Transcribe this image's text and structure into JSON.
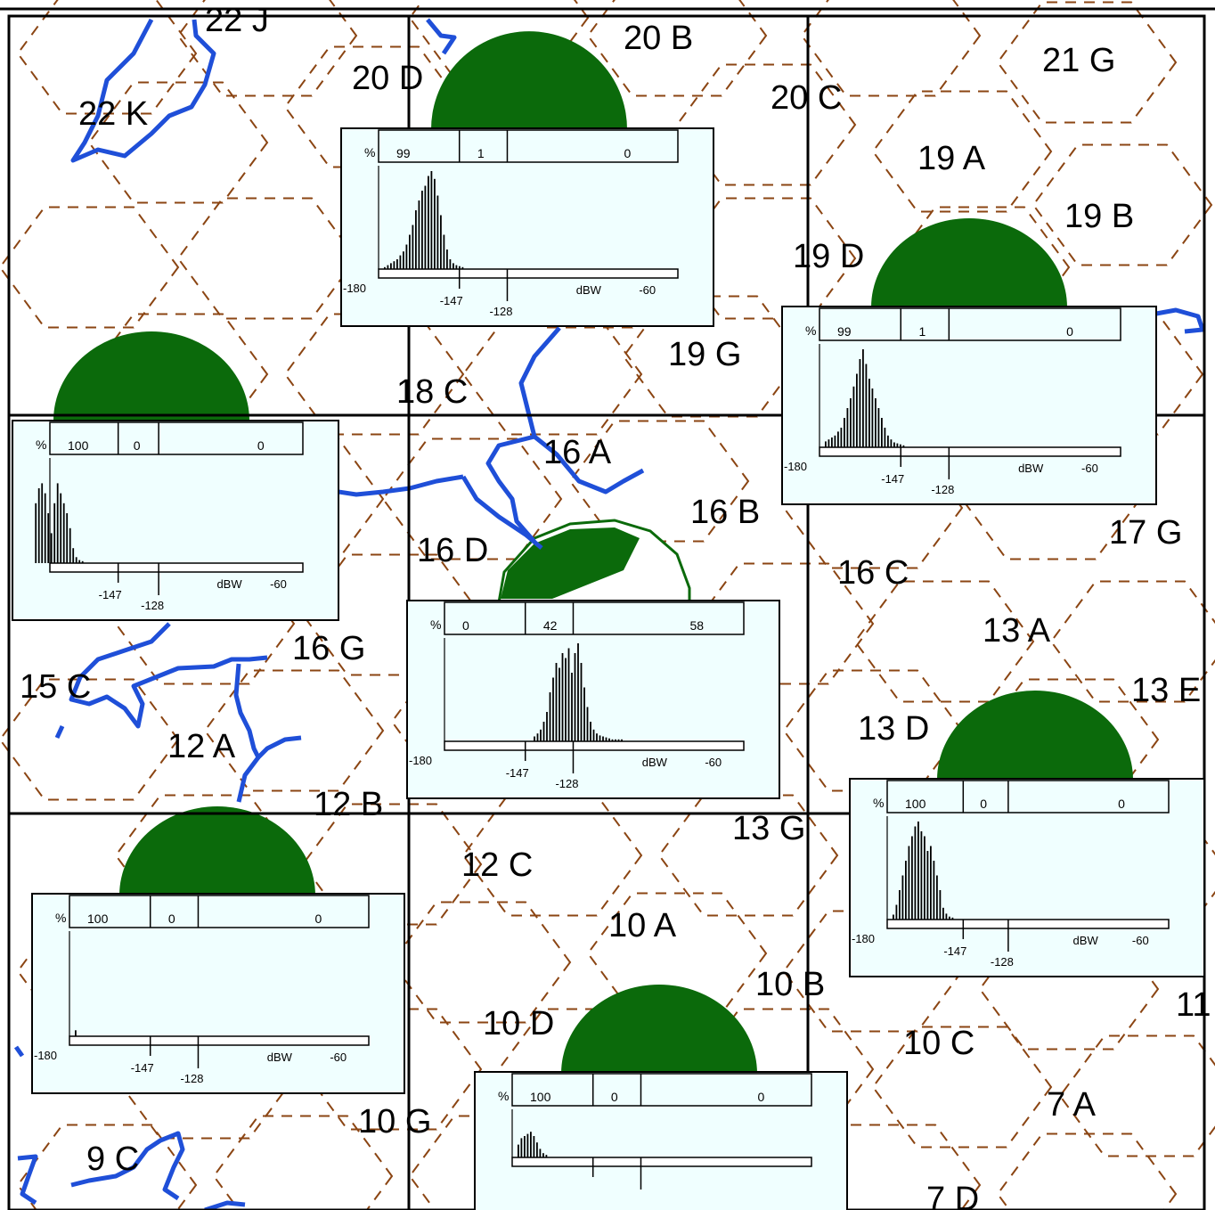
{
  "map": {
    "colors": {
      "background": "#ffffff",
      "grid": "#000000",
      "hex_boundary": "#8b4513",
      "coastline": "#1f4fd8",
      "coverage_dome": "#0b6a0b",
      "panel_background": "#f0ffff"
    },
    "cell_labels": [
      "22 J",
      "20 D",
      "20 B",
      "21 G",
      "22 K",
      "20 C",
      "19 A",
      "19 B",
      "19 D",
      "19 G",
      "18 C",
      "16 A",
      "16 B",
      "17 G",
      "16 D",
      "16 C",
      "13 A",
      "16 G",
      "15 C",
      "12 A",
      "13 D",
      "13 E",
      "12 B",
      "13 G",
      "12 C",
      "10 A",
      "10 B",
      "10 D",
      "10 C",
      "11",
      "7 A",
      "10 G",
      "9 C",
      "7 D"
    ],
    "stat_panels": [
      {
        "pct_label": "%",
        "pct": [
          "99",
          "1",
          "0"
        ],
        "ticks": {
          "left": "-180",
          "a": "-147",
          "b": "-128",
          "unit": "dBW",
          "right": "-60"
        }
      },
      {
        "pct_label": "%",
        "pct": [
          "99",
          "1",
          "0"
        ],
        "ticks": {
          "left": "-180",
          "a": "-147",
          "b": "-128",
          "unit": "dBW",
          "right": "-60"
        }
      },
      {
        "pct_label": "%",
        "pct": [
          "100",
          "0",
          "0"
        ],
        "ticks": {
          "left": "",
          "a": "-147",
          "b": "-128",
          "unit": "dBW",
          "right": "-60"
        }
      },
      {
        "pct_label": "%",
        "pct": [
          "0",
          "42",
          "58"
        ],
        "ticks": {
          "left": "-180",
          "a": "-147",
          "b": "-128",
          "unit": "dBW",
          "right": "-60"
        }
      },
      {
        "pct_label": "%",
        "pct": [
          "100",
          "0",
          "0"
        ],
        "ticks": {
          "left": "-180",
          "a": "-147",
          "b": "-128",
          "unit": "dBW",
          "right": "-60"
        }
      },
      {
        "pct_label": "%",
        "pct": [
          "100",
          "0",
          "0"
        ],
        "ticks": {
          "left": "-180",
          "a": "-147",
          "b": "-128",
          "unit": "dBW",
          "right": "-60"
        }
      },
      {
        "pct_label": "%",
        "pct": [
          "100",
          "0",
          "0"
        ],
        "ticks": {
          "left": "",
          "a": "",
          "b": "",
          "unit": "",
          "right": ""
        }
      }
    ]
  }
}
